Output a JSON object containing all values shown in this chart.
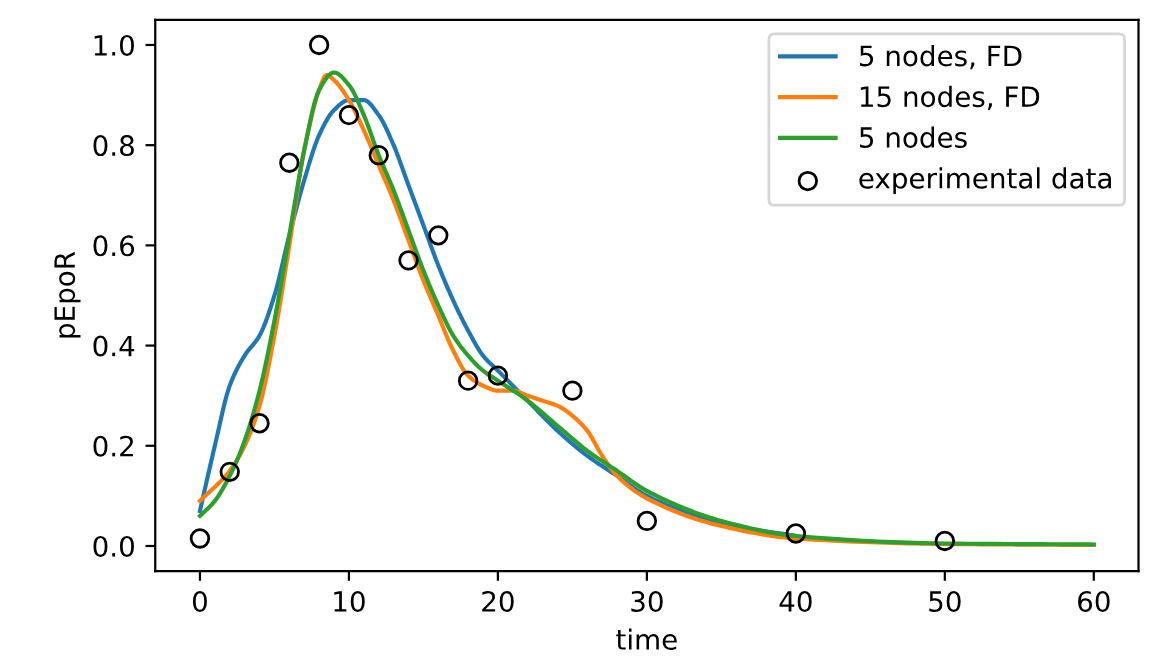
{
  "chart_data": {
    "type": "line",
    "xlabel": "time",
    "ylabel": "pEpoR",
    "xlim": [
      -3,
      63
    ],
    "xticks": [
      0,
      10,
      20,
      30,
      40,
      50,
      60
    ],
    "ylim": [
      -0.05,
      1.05
    ],
    "yticks": [
      {
        "value": 0,
        "label": "0.0"
      },
      {
        "value": 0.2,
        "label": "0.2"
      },
      {
        "value": 0.4,
        "label": "0.4"
      },
      {
        "value": 0.6,
        "label": "0.6"
      },
      {
        "value": 0.8,
        "label": "0.8"
      },
      {
        "value": 1,
        "label": "1.0"
      }
    ],
    "grid": false,
    "legend": "top right",
    "series": [
      {
        "name": "5 nodes, FD",
        "color": "#1f77b4",
        "x": [
          0,
          1,
          2,
          3,
          4,
          5,
          6,
          7,
          8,
          9,
          10,
          11,
          12,
          13,
          14,
          15,
          16,
          17,
          18,
          19,
          20,
          22,
          24,
          26,
          28,
          30,
          35,
          40
        ],
        "values": [
          0.07,
          0.2,
          0.32,
          0.38,
          0.42,
          0.5,
          0.62,
          0.73,
          0.82,
          0.87,
          0.89,
          0.89,
          0.86,
          0.8,
          0.72,
          0.64,
          0.56,
          0.49,
          0.43,
          0.38,
          0.35,
          0.29,
          0.23,
          0.18,
          0.14,
          0.1,
          0.045,
          0.02
        ]
      },
      {
        "name": "15 nodes, FD",
        "color": "#ff7f0e",
        "x": [
          0,
          2,
          3,
          4,
          5,
          6,
          7,
          8,
          8.5,
          9,
          10,
          11,
          12,
          13,
          14,
          15,
          16,
          17,
          18,
          19,
          20,
          21,
          22,
          23,
          24,
          25,
          26,
          27,
          28,
          30,
          35,
          40,
          50,
          60
        ],
        "values": [
          0.09,
          0.15,
          0.2,
          0.28,
          0.42,
          0.6,
          0.79,
          0.91,
          0.94,
          0.93,
          0.89,
          0.83,
          0.76,
          0.69,
          0.61,
          0.53,
          0.46,
          0.39,
          0.34,
          0.32,
          0.31,
          0.31,
          0.3,
          0.29,
          0.28,
          0.26,
          0.23,
          0.18,
          0.14,
          0.095,
          0.04,
          0.015,
          0.004,
          0.002
        ]
      },
      {
        "name": "5 nodes",
        "color": "#2ca02c",
        "x": [
          0,
          1,
          2,
          3,
          4,
          5,
          6,
          7,
          8,
          9,
          10,
          11,
          12,
          13,
          14,
          15,
          16,
          17,
          18,
          19,
          20,
          22,
          24,
          26,
          28,
          30,
          35,
          40,
          50,
          60
        ],
        "values": [
          0.06,
          0.09,
          0.14,
          0.21,
          0.31,
          0.45,
          0.62,
          0.79,
          0.91,
          0.945,
          0.92,
          0.86,
          0.78,
          0.71,
          0.63,
          0.55,
          0.48,
          0.42,
          0.38,
          0.35,
          0.33,
          0.29,
          0.24,
          0.19,
          0.15,
          0.11,
          0.05,
          0.02,
          0.005,
          0.003
        ]
      },
      {
        "name": "experimental data",
        "type": "scatter",
        "marker": "circle",
        "color": "#000000",
        "x": [
          0,
          2,
          4,
          6,
          8,
          10,
          12,
          14,
          16,
          18,
          20,
          25,
          30,
          40,
          50
        ],
        "values": [
          0.015,
          0.148,
          0.245,
          0.765,
          1.0,
          0.86,
          0.78,
          0.57,
          0.62,
          0.33,
          0.34,
          0.31,
          0.05,
          0.025,
          0.01
        ]
      }
    ]
  }
}
